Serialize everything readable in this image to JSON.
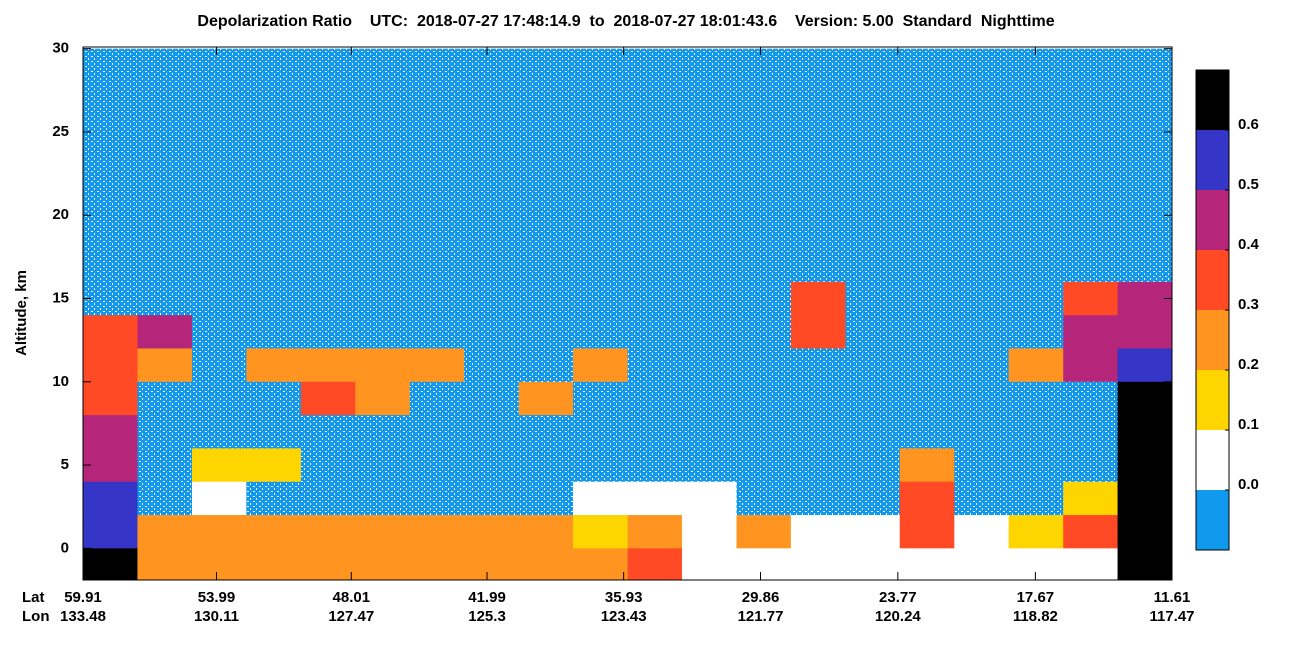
{
  "chart_data": {
    "type": "heatmap",
    "title": "Depolarization Ratio    UTC:  2018-07-27 17:48:14.9  to  2018-07-27 18:01:43.6    Version: 5.00  Standard  Nighttime",
    "ylabel": "Altitude, km",
    "lat_label": "Lat",
    "lon_label": "Lon",
    "xlim": [
      59.91,
      11.61
    ],
    "xticks": [
      59.91,
      53.99,
      48.01,
      41.99,
      35.93,
      29.86,
      23.77,
      17.67,
      11.61
    ],
    "lon_ticks": [
      133.48,
      130.11,
      127.47,
      125.3,
      123.43,
      121.77,
      120.24,
      118.82,
      117.47
    ],
    "ylim": [
      -1.9,
      30.1
    ],
    "yticks": [
      0,
      5,
      10,
      15,
      20,
      25,
      30
    ],
    "x": [
      58.7,
      56.29,
      53.87,
      51.46,
      49.04,
      46.63,
      44.21,
      41.8,
      39.38,
      36.97,
      34.55,
      32.14,
      29.72,
      27.31,
      24.89,
      22.48,
      20.06,
      17.65,
      15.23,
      12.82
    ],
    "y": [
      29,
      27,
      25,
      23,
      21,
      19,
      17,
      15,
      13,
      11,
      9,
      7,
      5,
      3,
      1,
      -1
    ],
    "z": [
      [
        -0.03,
        -0.03,
        -0.03,
        -0.03,
        -0.03,
        -0.03,
        -0.03,
        -0.03,
        -0.03,
        -0.03,
        -0.03,
        -0.03,
        -0.03,
        -0.03,
        -0.03,
        -0.03,
        -0.03,
        -0.03,
        -0.03,
        -0.03
      ],
      [
        -0.03,
        -0.03,
        -0.03,
        -0.03,
        -0.03,
        -0.03,
        -0.03,
        -0.03,
        -0.03,
        -0.03,
        -0.03,
        -0.03,
        -0.03,
        -0.03,
        -0.03,
        -0.03,
        -0.03,
        -0.03,
        -0.03,
        -0.03
      ],
      [
        -0.03,
        -0.03,
        -0.03,
        -0.03,
        -0.03,
        -0.03,
        -0.03,
        -0.03,
        -0.03,
        -0.03,
        -0.03,
        -0.03,
        -0.03,
        -0.03,
        -0.03,
        -0.03,
        -0.03,
        -0.03,
        -0.03,
        -0.03
      ],
      [
        -0.03,
        -0.03,
        -0.03,
        -0.03,
        -0.03,
        -0.03,
        -0.03,
        -0.03,
        -0.03,
        -0.03,
        -0.03,
        -0.03,
        -0.03,
        -0.03,
        -0.03,
        -0.03,
        -0.03,
        -0.03,
        -0.03,
        -0.03
      ],
      [
        -0.03,
        -0.03,
        -0.03,
        -0.03,
        -0.03,
        -0.03,
        -0.03,
        -0.03,
        -0.03,
        -0.03,
        -0.03,
        -0.03,
        -0.03,
        -0.03,
        -0.03,
        -0.03,
        -0.03,
        -0.03,
        -0.03,
        -0.03
      ],
      [
        -0.03,
        -0.03,
        -0.03,
        -0.03,
        -0.03,
        -0.03,
        -0.03,
        -0.03,
        -0.03,
        -0.03,
        -0.03,
        -0.03,
        -0.03,
        -0.03,
        -0.03,
        -0.03,
        -0.03,
        -0.03,
        -0.03,
        -0.03
      ],
      [
        -0.03,
        -0.03,
        -0.03,
        -0.03,
        -0.03,
        -0.03,
        -0.03,
        -0.03,
        -0.03,
        -0.03,
        -0.03,
        -0.03,
        -0.03,
        -0.03,
        -0.03,
        -0.03,
        -0.03,
        -0.03,
        -0.03,
        -0.03
      ],
      [
        -0.03,
        -0.03,
        -0.03,
        -0.03,
        -0.03,
        -0.03,
        -0.03,
        -0.03,
        -0.03,
        -0.03,
        -0.03,
        -0.03,
        -0.03,
        0.35,
        -0.03,
        -0.03,
        -0.03,
        -0.03,
        0.35,
        0.45
      ],
      [
        0.35,
        0.45,
        -0.03,
        -0.03,
        -0.03,
        -0.03,
        -0.03,
        -0.03,
        -0.03,
        -0.03,
        -0.03,
        -0.03,
        -0.03,
        0.35,
        -0.03,
        -0.03,
        -0.03,
        -0.03,
        0.45,
        0.45
      ],
      [
        0.35,
        0.25,
        -0.03,
        0.25,
        0.25,
        0.25,
        0.25,
        -0.03,
        -0.03,
        0.25,
        -0.03,
        -0.03,
        -0.03,
        -0.03,
        -0.03,
        -0.03,
        -0.03,
        0.25,
        0.45,
        0.55
      ],
      [
        0.35,
        -0.03,
        -0.03,
        -0.03,
        0.35,
        0.25,
        -0.03,
        -0.03,
        0.25,
        -0.03,
        -0.03,
        -0.03,
        -0.03,
        -0.03,
        -0.03,
        -0.03,
        -0.03,
        -0.03,
        -0.03,
        0.65
      ],
      [
        0.45,
        -0.03,
        -0.03,
        -0.03,
        -0.03,
        -0.03,
        -0.03,
        -0.03,
        -0.03,
        -0.03,
        -0.03,
        -0.03,
        -0.03,
        -0.03,
        -0.03,
        -0.03,
        -0.03,
        -0.03,
        -0.03,
        0.65
      ],
      [
        0.45,
        -0.03,
        0.15,
        0.15,
        -0.03,
        -0.03,
        -0.03,
        -0.03,
        -0.03,
        -0.03,
        -0.03,
        -0.03,
        -0.03,
        -0.03,
        -0.03,
        0.25,
        -0.03,
        -0.03,
        -0.03,
        0.65
      ],
      [
        0.55,
        -0.03,
        0.05,
        -0.03,
        -0.03,
        -0.03,
        -0.03,
        -0.03,
        -0.03,
        0.05,
        0.05,
        0.05,
        -0.03,
        -0.03,
        -0.03,
        0.35,
        -0.03,
        -0.03,
        0.15,
        0.65
      ],
      [
        0.55,
        0.25,
        0.25,
        0.25,
        0.25,
        0.25,
        0.25,
        0.25,
        0.25,
        0.15,
        0.25,
        0.05,
        0.25,
        0.05,
        0.05,
        0.35,
        0.05,
        0.15,
        0.35,
        0.65
      ],
      [
        0.65,
        0.25,
        0.25,
        0.25,
        0.25,
        0.25,
        0.25,
        0.25,
        0.25,
        0.25,
        0.35,
        0.05,
        0.05,
        0.05,
        0.05,
        0.05,
        0.05,
        0.05,
        0.05,
        0.65
      ]
    ],
    "colorbar": {
      "lim": [
        -0.1,
        0.7
      ],
      "colors": [
        "#1199ee",
        "#ffffff",
        "#ffd500",
        "#ff9520",
        "#ff4a25",
        "#b5267a",
        "#3535c8",
        "#000000"
      ],
      "ticks": [
        {
          "value": 0,
          "label": "0.0"
        },
        0.1,
        0.2,
        0.3,
        0.4,
        0.5,
        0.6
      ]
    }
  }
}
